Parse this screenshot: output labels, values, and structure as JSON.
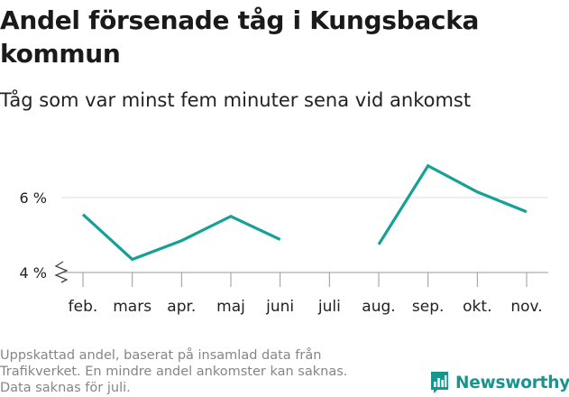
{
  "title": "Andel försenade tåg i Kungsbacka kommun",
  "subtitle": "Tåg som var minst fem minuter sena vid ankomst",
  "chart_data": {
    "type": "line",
    "categories": [
      "feb.",
      "mars",
      "apr.",
      "maj",
      "juni",
      "juli",
      "aug.",
      "sep.",
      "okt.",
      "nov."
    ],
    "series": [
      {
        "name": "Andel försenade tåg",
        "values": [
          5.55,
          4.35,
          4.85,
          5.5,
          4.88,
          null,
          4.75,
          6.85,
          6.15,
          5.62
        ],
        "color": "#17a095"
      }
    ],
    "yticks": [
      {
        "value": 4,
        "label": "4 %"
      },
      {
        "value": 6,
        "label": "6 %"
      }
    ],
    "ylim": [
      4,
      7.1
    ],
    "axis_break": true,
    "grid": true,
    "xlabel": "",
    "ylabel": ""
  },
  "footnote": [
    "Uppskattad andel, baserat på insamlad data från",
    "Trafikverket. En mindre andel ankomster kan saknas.",
    "Data saknas för juli."
  ],
  "brand": {
    "name": "Newsworthy",
    "icon": "bar-chart-logo-icon",
    "color": "#17958e"
  }
}
